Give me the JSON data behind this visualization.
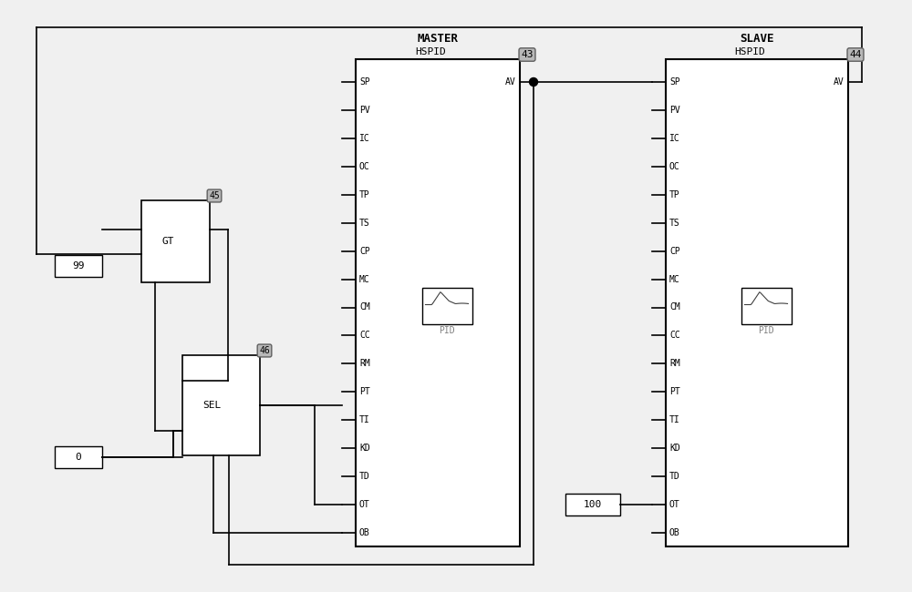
{
  "bg_color": "#f0f0f0",
  "master_label": "MASTER",
  "slave_label": "SLAVE",
  "hspid_label": "HSPID",
  "pid_label": "PID",
  "ports": [
    "SP",
    "PV",
    "IC",
    "OC",
    "TP",
    "TS",
    "CP",
    "MC",
    "CM",
    "CC",
    "RM",
    "PT",
    "TI",
    "KD",
    "TD",
    "OT",
    "OB"
  ],
  "master_block_num": "43",
  "slave_block_num": "44",
  "gt_block_num": "45",
  "sel_block_num": "46",
  "gt_label": "GT",
  "sel_label": "SEL",
  "const_99": "99",
  "const_0": "0",
  "const_100": "100",
  "line_color": "#000000",
  "badge_fill": "#b8b8b8",
  "badge_edge": "#606060"
}
